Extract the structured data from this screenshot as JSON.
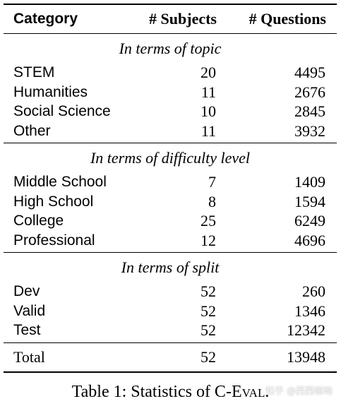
{
  "table": {
    "headers": {
      "category": "Category",
      "subjects": "# Subjects",
      "questions": "# Questions"
    },
    "sections": [
      {
        "title": "In terms of topic",
        "rows": [
          {
            "category": "STEM",
            "subjects": "20",
            "questions": "4495"
          },
          {
            "category": "Humanities",
            "subjects": "11",
            "questions": "2676"
          },
          {
            "category": "Social Science",
            "subjects": "10",
            "questions": "2845"
          },
          {
            "category": "Other",
            "subjects": "11",
            "questions": "3932"
          }
        ]
      },
      {
        "title": "In terms of difficulty level",
        "rows": [
          {
            "category": "Middle School",
            "subjects": "7",
            "questions": "1409"
          },
          {
            "category": "High School",
            "subjects": "8",
            "questions": "1594"
          },
          {
            "category": "College",
            "subjects": "25",
            "questions": "6249"
          },
          {
            "category": "Professional",
            "subjects": "12",
            "questions": "4696"
          }
        ]
      },
      {
        "title": "In terms of split",
        "rows": [
          {
            "category": "Dev",
            "subjects": "52",
            "questions": "260"
          },
          {
            "category": "Valid",
            "subjects": "52",
            "questions": "1346"
          },
          {
            "category": "Test",
            "subjects": "52",
            "questions": "12342"
          }
        ]
      }
    ],
    "total": {
      "category": "Total",
      "subjects": "52",
      "questions": "13948"
    }
  },
  "caption": {
    "prefix": "Table 1: Statistics of C-",
    "name": "Eval",
    "suffix": "."
  },
  "watermark": "知乎 @西西嘛呦"
}
